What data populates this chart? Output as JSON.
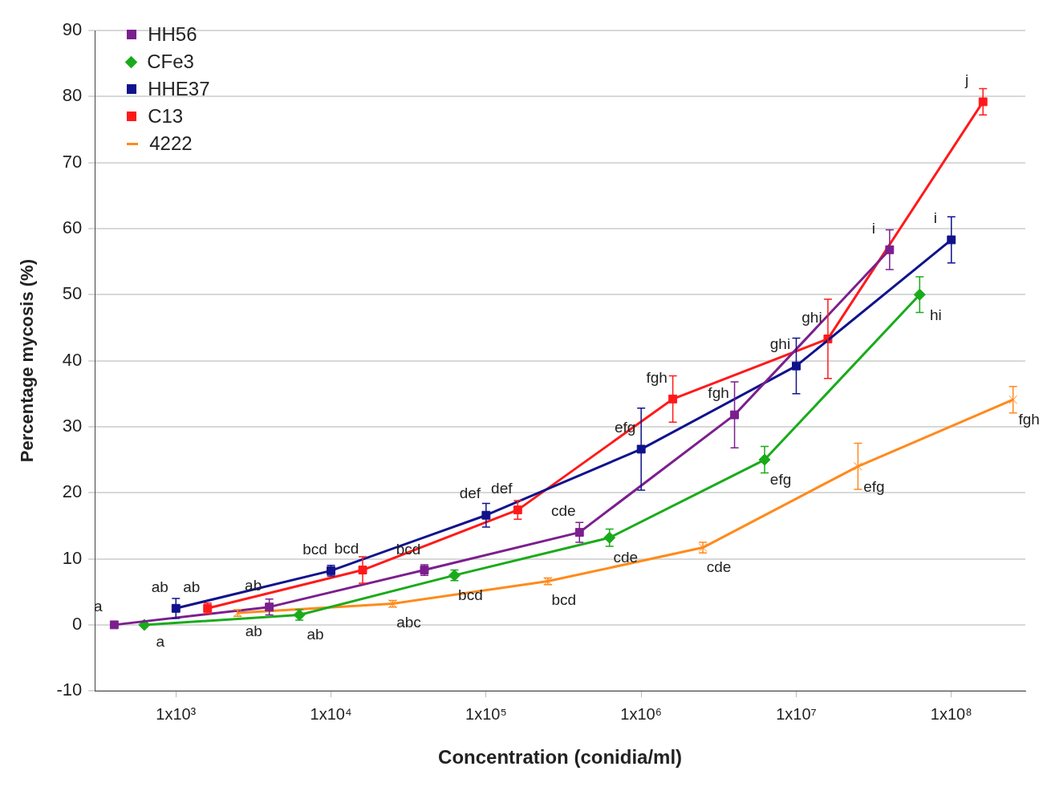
{
  "chart_data": {
    "type": "line",
    "xlabel": "Concentration (conidia/ml)",
    "ylabel": "Percentage mycosis (%)",
    "log": "x",
    "xlim": [
      300,
      300000000
    ],
    "xticks": [
      {
        "value": 1000,
        "label": "1x10³"
      },
      {
        "value": 10000,
        "label": "1x10⁴"
      },
      {
        "value": 100000,
        "label": "1x10⁵"
      },
      {
        "value": 1000000,
        "label": "1x10⁶"
      },
      {
        "value": 10000000,
        "label": "1x10⁷"
      },
      {
        "value": 100000000,
        "label": "1x10⁸"
      }
    ],
    "ylim": [
      -10,
      90
    ],
    "yticks": [
      -10,
      0,
      10,
      20,
      30,
      40,
      50,
      60,
      70,
      80,
      90
    ],
    "grid": "y",
    "legend": "top left",
    "marker": "square",
    "line_style": "solid",
    "series": [
      {
        "name": "HH56",
        "color": "#7b1f8e",
        "x": [
          400,
          4000,
          40000,
          400000,
          4000000,
          40000000
        ],
        "values": [
          0,
          2.7,
          8.3,
          14.0,
          31.8,
          56.8
        ],
        "errors": [
          null,
          1.2,
          0.8,
          1.5,
          5,
          3
        ]
      },
      {
        "name": "CFe3",
        "color": "#1aab1a",
        "marker": "diamond",
        "x": [
          625,
          6250,
          62500,
          625000,
          6250000,
          62500000
        ],
        "values": [
          0,
          1.5,
          7.5,
          13.2,
          25.0,
          50.0
        ],
        "errors": [
          null,
          0.8,
          0.8,
          1.3,
          2,
          2.7
        ]
      },
      {
        "name": "HHE37",
        "color": "#10138c",
        "x": [
          1000,
          10000,
          100000,
          1000000,
          10000000,
          100000000
        ],
        "values": [
          2.5,
          8.2,
          16.6,
          26.6,
          39.2,
          58.3
        ],
        "errors": [
          1.5,
          0.8,
          1.8,
          6.2,
          4.2,
          3.5
        ]
      },
      {
        "name": "C13",
        "color": "#ff1a1a",
        "x": [
          1600,
          16000,
          160000,
          1600000,
          16000000,
          160000000
        ],
        "values": [
          2.5,
          8.3,
          17.4,
          34.2,
          43.3,
          79.2
        ],
        "errors": [
          0.8,
          2,
          1.4,
          3.5,
          6,
          2
        ]
      },
      {
        "name": "4222",
        "color": "#ff8a1c",
        "marker": "cross",
        "x": [
          2500,
          25000,
          250000,
          2500000,
          25000000,
          250000000
        ],
        "values": [
          1.8,
          3.2,
          6.6,
          11.7,
          24.0,
          34.1
        ],
        "errors": [
          0.5,
          0.5,
          0.5,
          0.8,
          3.5,
          2
        ]
      }
    ],
    "annotations": [
      {
        "text": "a",
        "x": 400,
        "y": 0
      },
      {
        "text": "a",
        "x": 625,
        "y": 0
      },
      {
        "text": "ab",
        "x": 1000,
        "y": 2.5
      },
      {
        "text": "ab",
        "x": 1600,
        "y": 2.5
      },
      {
        "text": "ab",
        "x": 2500,
        "y": 1.8
      },
      {
        "text": "ab",
        "x": 4000,
        "y": 2.7
      },
      {
        "text": "ab",
        "x": 6250,
        "y": 1.5
      },
      {
        "text": "bcd",
        "x": 10000,
        "y": 8.2
      },
      {
        "text": "bcd",
        "x": 16000,
        "y": 8.3
      },
      {
        "text": "abc",
        "x": 25000,
        "y": 3.2
      },
      {
        "text": "bcd",
        "x": 40000,
        "y": 8.3
      },
      {
        "text": "bcd",
        "x": 62500,
        "y": 7.5
      },
      {
        "text": "def",
        "x": 100000,
        "y": 16.6
      },
      {
        "text": "def",
        "x": 160000,
        "y": 17.4
      },
      {
        "text": "bcd",
        "x": 250000,
        "y": 6.6
      },
      {
        "text": "cde",
        "x": 400000,
        "y": 14.0
      },
      {
        "text": "cde",
        "x": 625000,
        "y": 13.2
      },
      {
        "text": "efg",
        "x": 1000000,
        "y": 26.6
      },
      {
        "text": "fgh",
        "x": 1600000,
        "y": 34.2
      },
      {
        "text": "cde",
        "x": 2500000,
        "y": 11.7
      },
      {
        "text": "fgh",
        "x": 4000000,
        "y": 31.8
      },
      {
        "text": "efg",
        "x": 6250000,
        "y": 25.0
      },
      {
        "text": "ghi",
        "x": 10000000,
        "y": 39.2
      },
      {
        "text": "ghi",
        "x": 16000000,
        "y": 43.3
      },
      {
        "text": "efg",
        "x": 25000000,
        "y": 24.0
      },
      {
        "text": "i",
        "x": 40000000,
        "y": 56.8
      },
      {
        "text": "hi",
        "x": 62500000,
        "y": 50.0
      },
      {
        "text": "i",
        "x": 100000000,
        "y": 58.3
      },
      {
        "text": "j",
        "x": 160000000,
        "y": 79.2
      },
      {
        "text": "fgh",
        "x": 250000000,
        "y": 34.1
      }
    ]
  }
}
